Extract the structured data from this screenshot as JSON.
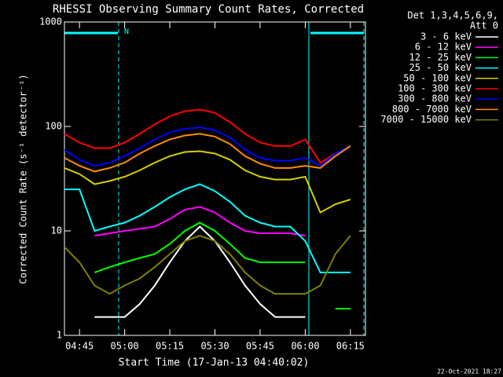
{
  "chart_data": {
    "type": "line",
    "title": "RHESSI Observing Summary Count Rates, Corrected",
    "xlabel": "Start Time (17-Jan-13 04:40:02)",
    "ylabel": "Corrected Count Rate (s⁻¹ detector⁻¹)",
    "legend_title": [
      "Det 1,3,4,5,6,9,",
      "Att 0"
    ],
    "annotation": "N",
    "footer": "22-Oct-2021 18:27",
    "log_y": true,
    "legend": "outside-right",
    "x": [
      "04:40",
      "04:45",
      "04:50",
      "04:55",
      "05:00",
      "05:05",
      "05:10",
      "05:15",
      "05:20",
      "05:25",
      "05:30",
      "05:35",
      "05:40",
      "05:45",
      "05:50",
      "05:55",
      "06:00",
      "06:05",
      "06:10",
      "06:15",
      "06:20"
    ],
    "xlim": [
      "04:40",
      "06:20"
    ],
    "xticks": [
      "04:45",
      "05:00",
      "05:15",
      "05:30",
      "05:45",
      "06:00",
      "06:15"
    ],
    "ylim": [
      1,
      1000
    ],
    "yticks": [
      1,
      10,
      100,
      1000
    ],
    "series": [
      {
        "name": "3 - 6 keV",
        "color": "#ffffff",
        "values": [
          null,
          null,
          1.5,
          1.5,
          1.5,
          2,
          3,
          5,
          8,
          11,
          8,
          5,
          3,
          2,
          1.5,
          1.5,
          1.5,
          null,
          null,
          null,
          null
        ]
      },
      {
        "name": "6 - 12 keV",
        "color": "#ff00ff",
        "values": [
          null,
          null,
          9,
          9.5,
          10,
          10.5,
          11,
          13,
          16,
          17,
          15,
          12,
          10,
          9.5,
          9.5,
          9.5,
          9,
          null,
          null,
          null,
          null
        ]
      },
      {
        "name": "12 - 25 keV",
        "color": "#00ff00",
        "values": [
          null,
          null,
          4,
          4.5,
          5,
          5.5,
          6,
          7.5,
          10,
          12,
          10,
          7.5,
          5.5,
          5,
          5,
          5,
          5,
          null,
          1.8,
          1.8,
          null
        ]
      },
      {
        "name": "25 - 50 keV",
        "color": "#00ffff",
        "values": [
          25,
          25,
          10,
          11,
          12,
          14,
          17,
          21,
          25,
          28,
          24,
          19,
          14,
          12,
          11,
          11,
          8,
          4,
          4,
          4,
          null
        ]
      },
      {
        "name": "50 - 100 keV",
        "color": "#d8d000",
        "values": [
          40,
          35,
          28,
          30,
          33,
          38,
          45,
          52,
          57,
          58,
          55,
          48,
          38,
          33,
          31,
          31,
          33,
          15,
          18,
          20,
          null
        ]
      },
      {
        "name": "100 - 300 keV",
        "color": "#ff0000",
        "values": [
          85,
          70,
          62,
          62,
          70,
          85,
          105,
          125,
          140,
          145,
          135,
          110,
          85,
          70,
          65,
          65,
          75,
          45,
          55,
          65,
          null
        ]
      },
      {
        "name": "300 - 800 keV",
        "color": "#0000ff",
        "values": [
          60,
          48,
          42,
          45,
          52,
          62,
          75,
          88,
          95,
          98,
          92,
          78,
          60,
          50,
          47,
          47,
          50,
          42,
          55,
          65,
          null
        ]
      },
      {
        "name": "800 - 7000 keV",
        "color": "#ff8c00",
        "values": [
          50,
          42,
          37,
          40,
          45,
          55,
          65,
          75,
          82,
          85,
          80,
          68,
          52,
          44,
          40,
          40,
          42,
          40,
          52,
          65,
          null
        ]
      },
      {
        "name": "7000 - 15000 keV",
        "color": "#808000",
        "values": [
          7,
          5,
          3,
          2.5,
          3,
          3.5,
          4.5,
          6,
          8,
          9,
          8,
          6,
          4,
          3,
          2.5,
          2.5,
          2.5,
          3,
          6,
          9,
          null
        ]
      }
    ]
  }
}
